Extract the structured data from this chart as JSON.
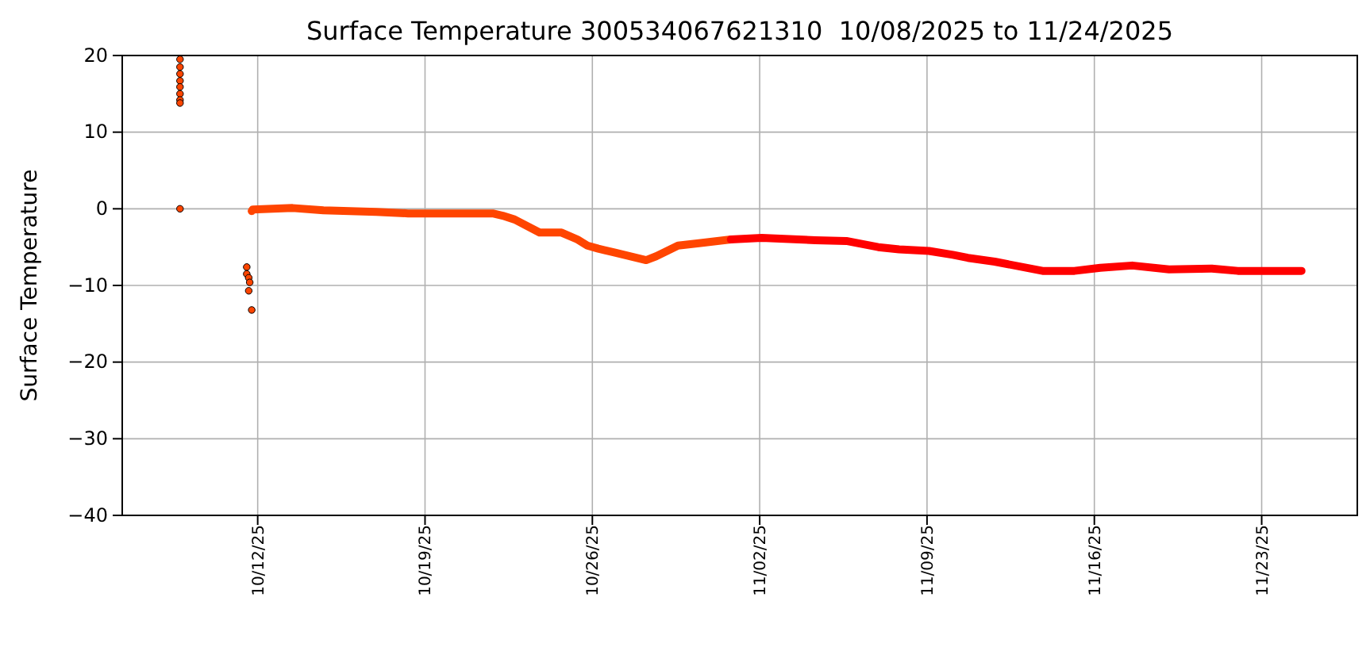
{
  "chart_data": {
    "type": "scatter",
    "title": "Surface Temperature 300534067621310  10/08/2025 to 11/24/2025",
    "ylabel": "Surface Temperature",
    "xlim": [
      "2025-10-06T08:00",
      "2025-11-27T00:00"
    ],
    "ylim": [
      -40,
      20
    ],
    "xticks": [
      {
        "value": "2025-10-12",
        "label": "10/12/25"
      },
      {
        "value": "2025-10-19",
        "label": "10/19/25"
      },
      {
        "value": "2025-10-26",
        "label": "10/26/25"
      },
      {
        "value": "2025-11-02",
        "label": "11/02/25"
      },
      {
        "value": "2025-11-09",
        "label": "11/09/25"
      },
      {
        "value": "2025-11-16",
        "label": "11/16/25"
      },
      {
        "value": "2025-11-23",
        "label": "11/23/25"
      }
    ],
    "yticks": [
      -40,
      -30,
      -20,
      -10,
      0,
      10,
      20
    ],
    "grid": true,
    "series": [
      {
        "marker": "circle",
        "color": "#ff4500",
        "x": [
          "2025-10-08T18:00",
          "2025-10-08T18:00",
          "2025-10-08T18:00",
          "2025-10-08T18:00",
          "2025-10-08T18:00",
          "2025-10-08T18:00",
          "2025-10-08T18:00",
          "2025-10-08T18:00",
          "2025-10-08T18:00",
          "2025-10-11T13:00",
          "2025-10-11T13:00",
          "2025-10-11T15:00",
          "2025-10-11T15:00",
          "2025-10-11T16:00",
          "2025-10-11T18:00"
        ],
        "values": [
          19.5,
          18.5,
          17.6,
          16.7,
          15.9,
          15.0,
          14.2,
          13.8,
          0,
          -7.6,
          -8.5,
          -9.0,
          -10.7,
          -9.6,
          -13.2
        ]
      },
      {
        "type": "line",
        "marker": "none",
        "color": "#ff4500",
        "x": [
          "2025-10-11T18:00",
          "2025-10-11T19:00",
          "2025-10-13T11:00",
          "2025-10-14T18:00",
          "2025-10-16T23:00",
          "2025-10-18T07:00",
          "2025-10-21T04:00",
          "2025-10-21T20:00",
          "2025-10-22T06:00",
          "2025-10-22T18:00",
          "2025-10-23T19:00",
          "2025-10-24T17:00",
          "2025-10-25T09:00",
          "2025-10-25T19:00",
          "2025-10-26T06:00",
          "2025-10-26T22:00",
          "2025-10-28T06:00",
          "2025-10-28T16:00",
          "2025-10-29T14:00",
          "2025-10-30T11:00",
          "2025-10-31T19:00"
        ],
        "values": [
          -0.3,
          -0.1,
          0.1,
          -0.2,
          -0.4,
          -0.6,
          -0.6,
          -0.6,
          -0.9,
          -1.4,
          -3.1,
          -3.1,
          -4.0,
          -4.8,
          -5.2,
          -5.7,
          -6.7,
          -6.2,
          -4.8,
          -4.5,
          -4.0
        ]
      },
      {
        "type": "line",
        "marker": "none",
        "color": "#ff0000",
        "x": [
          "2025-10-31T19:00",
          "2025-11-02T02:00",
          "2025-11-04T08:00",
          "2025-11-05T15:00",
          "2025-11-06T23:00",
          "2025-11-07T20:00",
          "2025-11-09T02:00",
          "2025-11-10T02:00",
          "2025-11-10T17:00",
          "2025-11-11T20:00",
          "2025-11-13T20:00",
          "2025-11-15T04:00",
          "2025-11-16T06:00",
          "2025-11-17T14:00",
          "2025-11-19T03:00",
          "2025-11-20T22:00",
          "2025-11-22T00:00",
          "2025-11-24T16:00"
        ],
        "values": [
          -4.0,
          -3.8,
          -4.1,
          -4.2,
          -5.0,
          -5.3,
          -5.5,
          -6.0,
          -6.4,
          -6.9,
          -8.1,
          -8.1,
          -7.7,
          -7.4,
          -7.9,
          -7.8,
          -8.1,
          -8.1
        ]
      }
    ]
  }
}
